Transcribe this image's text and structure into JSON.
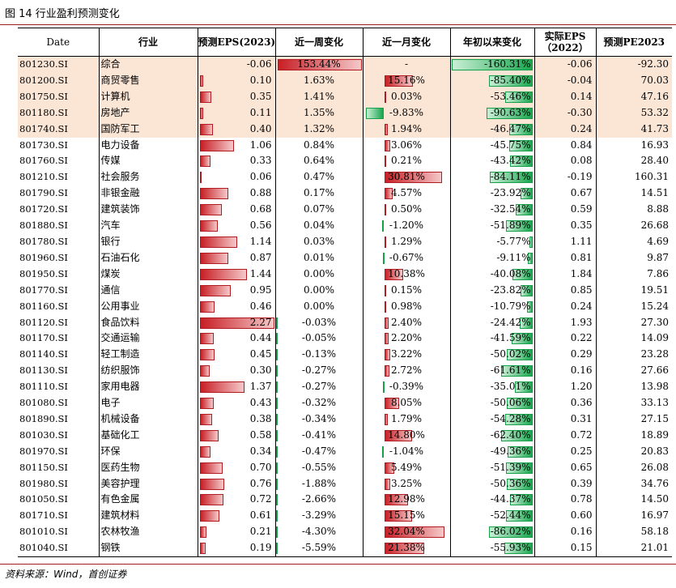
{
  "caption": "图 14 行业盈利预测变化",
  "source": "资料来源：Wind，首创证券",
  "headers": {
    "date": "Date",
    "industry": "行业",
    "eps_forecast": "预测EPS(2023)",
    "week": "近一周变化",
    "month": "近一月变化",
    "ytd": "年初以来变化",
    "eps_actual_1": "实际EPS",
    "eps_actual_2": "（2022）",
    "pe": "预测PE2023"
  },
  "rows": [
    {
      "code": "801230.SI",
      "name": "综合",
      "eps": -0.06,
      "eps_text": "-0.06",
      "week": 153.44,
      "week_text": "153.44%",
      "month": null,
      "month_text": "-",
      "ytd": -160.31,
      "ytd_text": "-160.31%",
      "actual": "-0.06",
      "pe": "-92.30",
      "hl": true
    },
    {
      "code": "801200.SI",
      "name": "商贸零售",
      "eps": 0.1,
      "eps_text": "0.10",
      "week": 1.63,
      "week_text": "1.63%",
      "month": 15.16,
      "month_text": "15.16%",
      "ytd": -85.4,
      "ytd_text": "-85.40%",
      "actual": "-0.04",
      "pe": "70.03",
      "hl": true
    },
    {
      "code": "801750.SI",
      "name": "计算机",
      "eps": 0.35,
      "eps_text": "0.35",
      "week": 1.41,
      "week_text": "1.41%",
      "month": 0.03,
      "month_text": "0.03%",
      "ytd": -53.46,
      "ytd_text": "-53.46%",
      "actual": "0.14",
      "pe": "47.16",
      "hl": true
    },
    {
      "code": "801180.SI",
      "name": "房地产",
      "eps": 0.11,
      "eps_text": "0.11",
      "week": 1.35,
      "week_text": "1.35%",
      "month": -9.83,
      "month_text": "-9.83%",
      "ytd": -90.63,
      "ytd_text": "-90.63%",
      "actual": "-0.30",
      "pe": "53.32",
      "hl": true
    },
    {
      "code": "801740.SI",
      "name": "国防军工",
      "eps": 0.4,
      "eps_text": "0.40",
      "week": 1.32,
      "week_text": "1.32%",
      "month": 1.94,
      "month_text": "1.94%",
      "ytd": -46.47,
      "ytd_text": "-46.47%",
      "actual": "0.24",
      "pe": "41.73",
      "hl": true
    },
    {
      "code": "801730.SI",
      "name": "电力设备",
      "eps": 1.06,
      "eps_text": "1.06",
      "week": 0.84,
      "week_text": "0.84%",
      "month": 3.06,
      "month_text": "3.06%",
      "ytd": -45.75,
      "ytd_text": "-45.75%",
      "actual": "0.84",
      "pe": "16.93",
      "hl": false
    },
    {
      "code": "801760.SI",
      "name": "传媒",
      "eps": 0.33,
      "eps_text": "0.33",
      "week": 0.64,
      "week_text": "0.64%",
      "month": 0.21,
      "month_text": "0.21%",
      "ytd": -43.42,
      "ytd_text": "-43.42%",
      "actual": "0.08",
      "pe": "28.40",
      "hl": false
    },
    {
      "code": "801210.SI",
      "name": "社会服务",
      "eps": 0.06,
      "eps_text": "0.06",
      "week": 0.47,
      "week_text": "0.47%",
      "month": 30.81,
      "month_text": "30.81%",
      "ytd": -84.11,
      "ytd_text": "-84.11%",
      "actual": "-0.19",
      "pe": "160.31",
      "hl": false
    },
    {
      "code": "801790.SI",
      "name": "非银金融",
      "eps": 0.88,
      "eps_text": "0.88",
      "week": 0.17,
      "week_text": "0.17%",
      "month": 4.57,
      "month_text": "4.57%",
      "ytd": -23.92,
      "ytd_text": "-23.92%",
      "actual": "0.67",
      "pe": "14.51",
      "hl": false
    },
    {
      "code": "801720.SI",
      "name": "建筑装饰",
      "eps": 0.68,
      "eps_text": "0.68",
      "week": 0.07,
      "week_text": "0.07%",
      "month": 0.5,
      "month_text": "0.50%",
      "ytd": -32.54,
      "ytd_text": "-32.54%",
      "actual": "0.59",
      "pe": "8.88",
      "hl": false
    },
    {
      "code": "801880.SI",
      "name": "汽车",
      "eps": 0.56,
      "eps_text": "0.56",
      "week": 0.04,
      "week_text": "0.04%",
      "month": -1.2,
      "month_text": "-1.20%",
      "ytd": -51.89,
      "ytd_text": "-51.89%",
      "actual": "0.35",
      "pe": "26.68",
      "hl": false
    },
    {
      "code": "801780.SI",
      "name": "银行",
      "eps": 1.14,
      "eps_text": "1.14",
      "week": 0.03,
      "week_text": "0.03%",
      "month": 1.29,
      "month_text": "1.29%",
      "ytd": -5.77,
      "ytd_text": "-5.77%",
      "actual": "1.11",
      "pe": "4.69",
      "hl": false
    },
    {
      "code": "801960.SI",
      "name": "石油石化",
      "eps": 0.87,
      "eps_text": "0.87",
      "week": 0.01,
      "week_text": "0.01%",
      "month": -0.67,
      "month_text": "-0.67%",
      "ytd": -9.11,
      "ytd_text": "-9.11%",
      "actual": "0.81",
      "pe": "9.87",
      "hl": false
    },
    {
      "code": "801950.SI",
      "name": "煤炭",
      "eps": 1.44,
      "eps_text": "1.44",
      "week": 0.0,
      "week_text": "0.00%",
      "month": 10.38,
      "month_text": "10.38%",
      "ytd": -40.08,
      "ytd_text": "-40.08%",
      "actual": "1.84",
      "pe": "7.86",
      "hl": false
    },
    {
      "code": "801770.SI",
      "name": "通信",
      "eps": 0.95,
      "eps_text": "0.95",
      "week": 0.0,
      "week_text": "0.00%",
      "month": 0.15,
      "month_text": "0.15%",
      "ytd": -23.82,
      "ytd_text": "-23.82%",
      "actual": "0.85",
      "pe": "19.51",
      "hl": false
    },
    {
      "code": "801160.SI",
      "name": "公用事业",
      "eps": 0.46,
      "eps_text": "0.46",
      "week": 0.0,
      "week_text": "0.00%",
      "month": 0.98,
      "month_text": "0.98%",
      "ytd": -10.79,
      "ytd_text": "-10.79%",
      "actual": "0.24",
      "pe": "15.24",
      "hl": false
    },
    {
      "code": "801120.SI",
      "name": "食品饮料",
      "eps": 2.27,
      "eps_text": "2.27",
      "week": -0.03,
      "week_text": "-0.03%",
      "month": 2.4,
      "month_text": "2.40%",
      "ytd": -24.42,
      "ytd_text": "-24.42%",
      "actual": "1.93",
      "pe": "27.30",
      "hl": false
    },
    {
      "code": "801170.SI",
      "name": "交通运输",
      "eps": 0.44,
      "eps_text": "0.44",
      "week": -0.05,
      "week_text": "-0.05%",
      "month": 2.2,
      "month_text": "2.20%",
      "ytd": -41.59,
      "ytd_text": "-41.59%",
      "actual": "0.22",
      "pe": "14.09",
      "hl": false
    },
    {
      "code": "801140.SI",
      "name": "轻工制造",
      "eps": 0.45,
      "eps_text": "0.45",
      "week": -0.13,
      "week_text": "-0.13%",
      "month": 3.22,
      "month_text": "3.22%",
      "ytd": -50.02,
      "ytd_text": "-50.02%",
      "actual": "0.29",
      "pe": "23.28",
      "hl": false
    },
    {
      "code": "801130.SI",
      "name": "纺织服饰",
      "eps": 0.3,
      "eps_text": "0.30",
      "week": -0.27,
      "week_text": "-0.27%",
      "month": 2.72,
      "month_text": "2.72%",
      "ytd": -61.61,
      "ytd_text": "-61.61%",
      "actual": "0.16",
      "pe": "27.66",
      "hl": false
    },
    {
      "code": "801110.SI",
      "name": "家用电器",
      "eps": 1.37,
      "eps_text": "1.37",
      "week": -0.27,
      "week_text": "-0.27%",
      "month": -0.39,
      "month_text": "-0.39%",
      "ytd": -35.01,
      "ytd_text": "-35.01%",
      "actual": "1.20",
      "pe": "13.98",
      "hl": false
    },
    {
      "code": "801080.SI",
      "name": "电子",
      "eps": 0.43,
      "eps_text": "0.43",
      "week": -0.32,
      "week_text": "-0.32%",
      "month": 8.05,
      "month_text": "8.05%",
      "ytd": -50.06,
      "ytd_text": "-50.06%",
      "actual": "0.36",
      "pe": "33.13",
      "hl": false
    },
    {
      "code": "801890.SI",
      "name": "机械设备",
      "eps": 0.38,
      "eps_text": "0.38",
      "week": -0.34,
      "week_text": "-0.34%",
      "month": 1.79,
      "month_text": "1.79%",
      "ytd": -54.28,
      "ytd_text": "-54.28%",
      "actual": "0.31",
      "pe": "27.15",
      "hl": false
    },
    {
      "code": "801030.SI",
      "name": "基础化工",
      "eps": 0.58,
      "eps_text": "0.58",
      "week": -0.41,
      "week_text": "-0.41%",
      "month": 14.8,
      "month_text": "14.80%",
      "ytd": -62.4,
      "ytd_text": "-62.40%",
      "actual": "0.72",
      "pe": "18.89",
      "hl": false
    },
    {
      "code": "801970.SI",
      "name": "环保",
      "eps": 0.34,
      "eps_text": "0.34",
      "week": -0.47,
      "week_text": "-0.47%",
      "month": -1.04,
      "month_text": "-1.04%",
      "ytd": -49.36,
      "ytd_text": "-49.36%",
      "actual": "0.25",
      "pe": "20.83",
      "hl": false
    },
    {
      "code": "801150.SI",
      "name": "医药生物",
      "eps": 0.7,
      "eps_text": "0.70",
      "week": -0.55,
      "week_text": "-0.55%",
      "month": 5.49,
      "month_text": "5.49%",
      "ytd": -51.39,
      "ytd_text": "-51.39%",
      "actual": "0.65",
      "pe": "26.08",
      "hl": false
    },
    {
      "code": "801980.SI",
      "name": "美容护理",
      "eps": 0.76,
      "eps_text": "0.76",
      "week": -1.88,
      "week_text": "-1.88%",
      "month": 3.25,
      "month_text": "3.25%",
      "ytd": -50.36,
      "ytd_text": "-50.36%",
      "actual": "0.39",
      "pe": "34.76",
      "hl": false
    },
    {
      "code": "801050.SI",
      "name": "有色金属",
      "eps": 0.72,
      "eps_text": "0.72",
      "week": -2.66,
      "week_text": "-2.66%",
      "month": 12.98,
      "month_text": "12.98%",
      "ytd": -44.37,
      "ytd_text": "-44.37%",
      "actual": "0.78",
      "pe": "14.50",
      "hl": false
    },
    {
      "code": "801710.SI",
      "name": "建筑材料",
      "eps": 0.61,
      "eps_text": "0.61",
      "week": -3.29,
      "week_text": "-3.29%",
      "month": 15.15,
      "month_text": "15.15%",
      "ytd": -52.44,
      "ytd_text": "-52.44%",
      "actual": "0.60",
      "pe": "16.97",
      "hl": false
    },
    {
      "code": "801010.SI",
      "name": "农林牧渔",
      "eps": 0.21,
      "eps_text": "0.21",
      "week": -4.3,
      "week_text": "-4.30%",
      "month": 32.04,
      "month_text": "32.04%",
      "ytd": -86.02,
      "ytd_text": "-86.02%",
      "actual": "0.16",
      "pe": "58.18",
      "hl": false
    },
    {
      "code": "801040.SI",
      "name": "钢铁",
      "eps": 0.19,
      "eps_text": "0.19",
      "week": -5.59,
      "week_text": "-5.59%",
      "month": 21.38,
      "month_text": "21.38%",
      "ytd": -55.93,
      "ytd_text": "-55.93%",
      "actual": "0.15",
      "pe": "21.01",
      "hl": false
    }
  ]
}
